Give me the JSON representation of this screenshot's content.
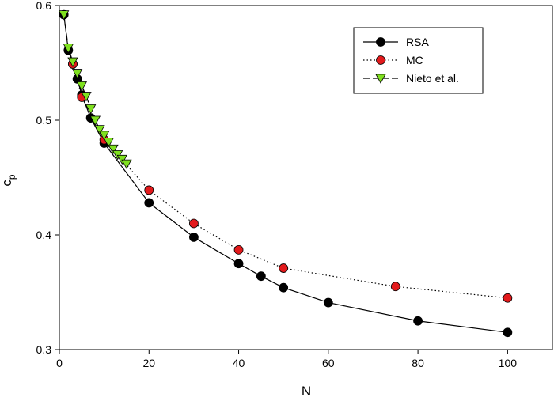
{
  "chart_data": {
    "type": "line",
    "xlabel": "N",
    "ylabel": "c",
    "ylabel_subscript": "p",
    "xlim": [
      0,
      110
    ],
    "ylim": [
      0.3,
      0.6
    ],
    "xticks": [
      0,
      20,
      40,
      60,
      80,
      100
    ],
    "yticks": [
      0.3,
      0.4,
      0.5,
      0.6
    ],
    "legend": "upper right",
    "series": [
      {
        "name": "RSA",
        "color": "#000000",
        "line_color": "#000000",
        "line_style": "solid",
        "marker": "circle",
        "x": [
          1,
          2,
          3,
          4,
          5,
          7,
          10,
          20,
          30,
          40,
          45,
          50,
          60,
          80,
          100
        ],
        "values": [
          0.592,
          0.561,
          0.549,
          0.536,
          0.522,
          0.502,
          0.48,
          0.428,
          0.398,
          0.375,
          0.364,
          0.354,
          0.341,
          0.325,
          0.315
        ]
      },
      {
        "name": "MC",
        "color": "#e31a1c",
        "line_color": "#000000",
        "line_style": "dotted",
        "marker": "circle",
        "x": [
          3,
          5,
          10,
          20,
          30,
          40,
          50,
          75,
          100
        ],
        "values": [
          0.549,
          0.52,
          0.483,
          0.439,
          0.41,
          0.387,
          0.371,
          0.355,
          0.345
        ]
      },
      {
        "name": "Nieto et al.",
        "color": "#7fe01f",
        "line_color": "#000000",
        "line_style": "dashed",
        "marker": "triangle-down",
        "x": [
          1,
          2,
          3,
          4,
          5,
          6,
          7,
          8,
          9,
          10,
          11,
          12,
          13,
          14,
          15
        ],
        "values": [
          0.592,
          0.563,
          0.551,
          0.541,
          0.53,
          0.521,
          0.51,
          0.5,
          0.492,
          0.487,
          0.481,
          0.475,
          0.47,
          0.466,
          0.462
        ]
      }
    ]
  }
}
